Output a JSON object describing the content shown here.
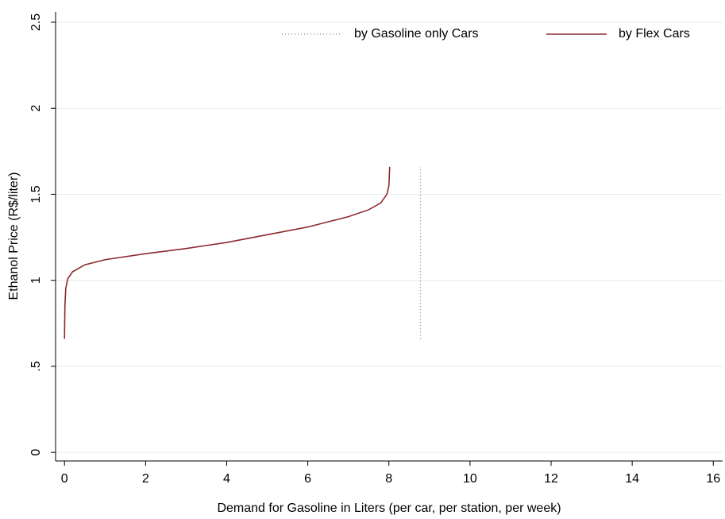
{
  "chart_data": {
    "type": "line",
    "xlabel": "Demand for Gasoline in Liters (per car, per station, per week)",
    "ylabel": "Ethanol Price (R$/liter)",
    "xlim": [
      -0.22,
      16.23
    ],
    "ylim": [
      -0.05,
      2.56
    ],
    "xticks": [
      0,
      2,
      4,
      6,
      8,
      10,
      12,
      14,
      16
    ],
    "yticks": [
      0,
      {
        "value": 0.5,
        "label": ".5"
      },
      1,
      1.5,
      2,
      2.5
    ],
    "grid": true,
    "series": [
      {
        "name": "by Gasoline only Cars",
        "color": "#6f8a99",
        "style": "dotted",
        "x": [
          8.78,
          8.78
        ],
        "values": [
          0.66,
          1.66
        ]
      },
      {
        "name": "by Flex Cars",
        "color": "#8c2a2e",
        "style": "solid",
        "x": [
          0,
          0.01,
          0.03,
          0.08,
          0.2,
          0.5,
          1,
          2,
          3,
          4,
          5,
          6,
          7,
          7.5,
          7.8,
          7.95,
          8.0,
          8.02
        ],
        "values": [
          0.66,
          0.85,
          0.95,
          1.01,
          1.05,
          1.09,
          1.12,
          1.155,
          1.185,
          1.22,
          1.265,
          1.31,
          1.37,
          1.41,
          1.45,
          1.5,
          1.55,
          1.66
        ]
      }
    ]
  }
}
